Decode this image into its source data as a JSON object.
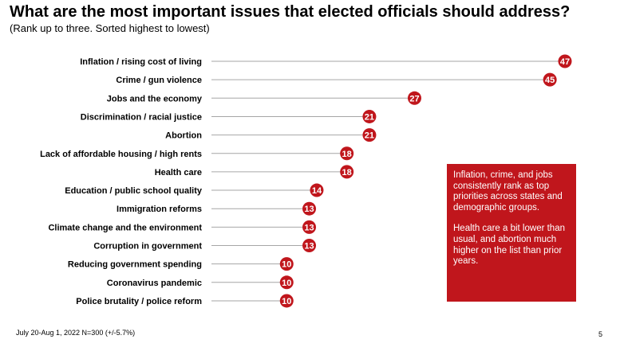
{
  "header": {
    "title": "What are the most important issues that elected officials should address?",
    "subtitle": "(Rank up to three. Sorted highest to lowest)"
  },
  "chart_data": {
    "type": "bar",
    "title": "What are the most important issues that elected officials should address?",
    "subtitle": "(Rank up to three. Sorted highest to lowest)",
    "categories": [
      "Inflation / rising cost of living",
      "Crime / gun violence",
      "Jobs and the economy",
      "Discrimination / racial justice",
      "Abortion",
      "Lack of affordable housing / high rents",
      "Health care",
      "Education / public school quality",
      "Immigration reforms",
      "Climate change and the environment",
      "Corruption in government",
      "Reducing government spending",
      "Coronavirus pandemic",
      "Police brutality / police reform"
    ],
    "values": [
      47,
      45,
      27,
      21,
      21,
      18,
      18,
      14,
      13,
      13,
      13,
      10,
      10,
      10
    ],
    "xlim": [
      0,
      47
    ],
    "orientation": "horizontal",
    "marker_color": "#c0161c",
    "line_color": "#a6a6a6",
    "grid": false,
    "legend": "none"
  },
  "callout": {
    "paragraph1": "Inflation, crime, and jobs consistently rank as top priorities across states and demographic groups.",
    "paragraph2": "Health care a bit lower than usual, and abortion much higher on the list than prior years.",
    "background": "#c0161c"
  },
  "footer": {
    "note": "July 20-Aug 1, 2022   N=300 (+/-5.7%)",
    "page_number": "5"
  }
}
